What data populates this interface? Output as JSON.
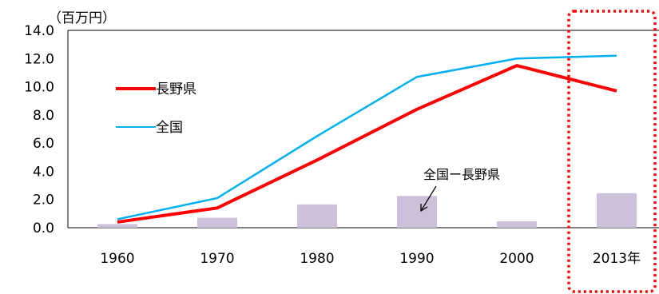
{
  "chart_data": {
    "type": "line",
    "unit_label": "（百万円）",
    "categories": [
      "1960",
      "1970",
      "1980",
      "1990",
      "2000",
      "2013年"
    ],
    "ylim": [
      0,
      14
    ],
    "yticks": [
      "0.0",
      "2.0",
      "4.0",
      "6.0",
      "8.0",
      "10.0",
      "12.0",
      "14.0"
    ],
    "grid": false,
    "series": [
      {
        "name": "長野県",
        "type": "line",
        "color": "#ff0000",
        "values": [
          0.4,
          1.4,
          4.8,
          8.4,
          11.5,
          9.7
        ]
      },
      {
        "name": "全国",
        "type": "line",
        "color": "#00b0f0",
        "values": [
          0.6,
          2.1,
          6.5,
          10.7,
          12.0,
          12.2
        ]
      },
      {
        "name": "全国ー長野県",
        "type": "bar",
        "color": "#ccc0da",
        "values": [
          0.25,
          0.7,
          1.65,
          2.25,
          0.45,
          2.45
        ]
      }
    ],
    "annotation_highlight": "2013年"
  }
}
